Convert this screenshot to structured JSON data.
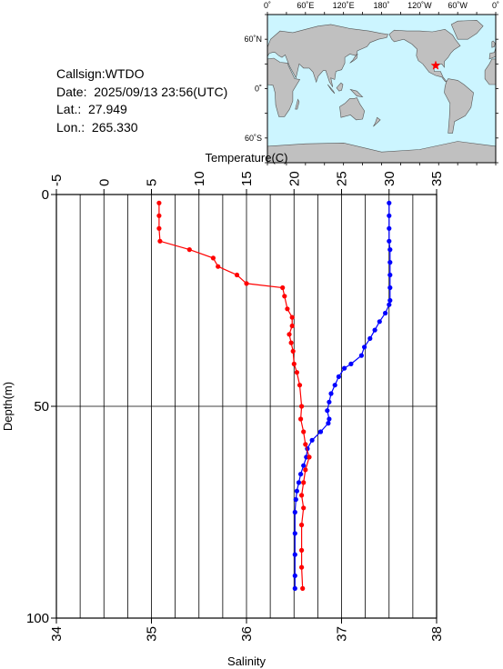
{
  "info": {
    "callsign": "Callsign:WTDO",
    "date": "Date:  2025/09/13 23:56(UTC)",
    "lat": "Lat.:  27.949",
    "lon": "Lon.:  265.330"
  },
  "map": {
    "lon_labels": [
      "0˚",
      "60˚E",
      "120˚E",
      "180˚",
      "120˚W",
      "60˚W",
      "0˚"
    ],
    "lat_labels": [
      "60˚N",
      "0˚",
      "60˚S"
    ],
    "ocean_color": "#ccf5ff",
    "land_color": "#c0c0c0",
    "marker": {
      "name": "star-marker",
      "lon_east": 265.33,
      "lat": 27.949,
      "color": "#ff0000"
    }
  },
  "chart_data": {
    "type": "line",
    "title": "",
    "top_axis": {
      "label": "Temperature(C)",
      "range": [
        -5,
        35
      ],
      "ticks": [
        "-5",
        "0",
        "5",
        "10",
        "15",
        "20",
        "25",
        "30",
        "35"
      ]
    },
    "bottom_axis": {
      "label": "Salinity",
      "range": [
        34,
        38
      ],
      "ticks": [
        "34",
        "35",
        "36",
        "37",
        "38"
      ]
    },
    "left_axis": {
      "label": "Depth(m)",
      "range": [
        0,
        100
      ],
      "inverted": true,
      "ticks": [
        "0",
        "50",
        "100"
      ]
    },
    "grid": true,
    "colors": {
      "temperature": "#0000ff",
      "salinity": "#ff0000"
    },
    "series": [
      {
        "key": "temperature",
        "axis": "top",
        "color": "#0000ff",
        "points": [
          [
            30.0,
            2
          ],
          [
            30.0,
            5
          ],
          [
            30.0,
            8
          ],
          [
            30.0,
            11
          ],
          [
            30.1,
            13
          ],
          [
            30.1,
            16
          ],
          [
            30.1,
            19
          ],
          [
            30.1,
            22
          ],
          [
            30.1,
            25
          ],
          [
            30.0,
            26
          ],
          [
            29.6,
            28
          ],
          [
            29.0,
            30
          ],
          [
            28.5,
            32
          ],
          [
            28.0,
            34
          ],
          [
            27.4,
            36
          ],
          [
            27.1,
            38
          ],
          [
            26.0,
            40
          ],
          [
            25.3,
            41
          ],
          [
            24.7,
            43
          ],
          [
            24.3,
            45
          ],
          [
            23.9,
            47
          ],
          [
            23.7,
            49
          ],
          [
            23.5,
            51
          ],
          [
            23.7,
            53
          ],
          [
            23.6,
            54
          ],
          [
            22.8,
            56
          ],
          [
            21.9,
            58
          ],
          [
            21.4,
            60
          ],
          [
            21.3,
            62
          ],
          [
            21.0,
            64
          ],
          [
            20.7,
            66
          ],
          [
            20.5,
            68
          ],
          [
            20.3,
            70
          ],
          [
            20.2,
            72
          ],
          [
            20.1,
            75
          ],
          [
            20.1,
            80
          ],
          [
            20.1,
            85
          ],
          [
            20.1,
            90
          ],
          [
            20.1,
            93
          ]
        ]
      },
      {
        "key": "salinity",
        "axis": "bottom",
        "color": "#ff0000",
        "points": [
          [
            35.08,
            2
          ],
          [
            35.08,
            5
          ],
          [
            35.08,
            8
          ],
          [
            35.09,
            11
          ],
          [
            35.4,
            13
          ],
          [
            35.65,
            15
          ],
          [
            35.7,
            17
          ],
          [
            35.9,
            19
          ],
          [
            36.0,
            21
          ],
          [
            36.38,
            22
          ],
          [
            36.4,
            24
          ],
          [
            36.43,
            27
          ],
          [
            36.48,
            29
          ],
          [
            36.48,
            31
          ],
          [
            36.45,
            33
          ],
          [
            36.47,
            35
          ],
          [
            36.49,
            37
          ],
          [
            36.5,
            40
          ],
          [
            36.53,
            42
          ],
          [
            36.56,
            45
          ],
          [
            36.58,
            50
          ],
          [
            36.57,
            53
          ],
          [
            36.6,
            56
          ],
          [
            36.62,
            59
          ],
          [
            36.66,
            62
          ],
          [
            36.62,
            65
          ],
          [
            36.6,
            68
          ],
          [
            36.58,
            71
          ],
          [
            36.6,
            74
          ],
          [
            36.58,
            78
          ],
          [
            36.58,
            84
          ],
          [
            36.58,
            88
          ],
          [
            36.59,
            93
          ]
        ]
      }
    ]
  }
}
